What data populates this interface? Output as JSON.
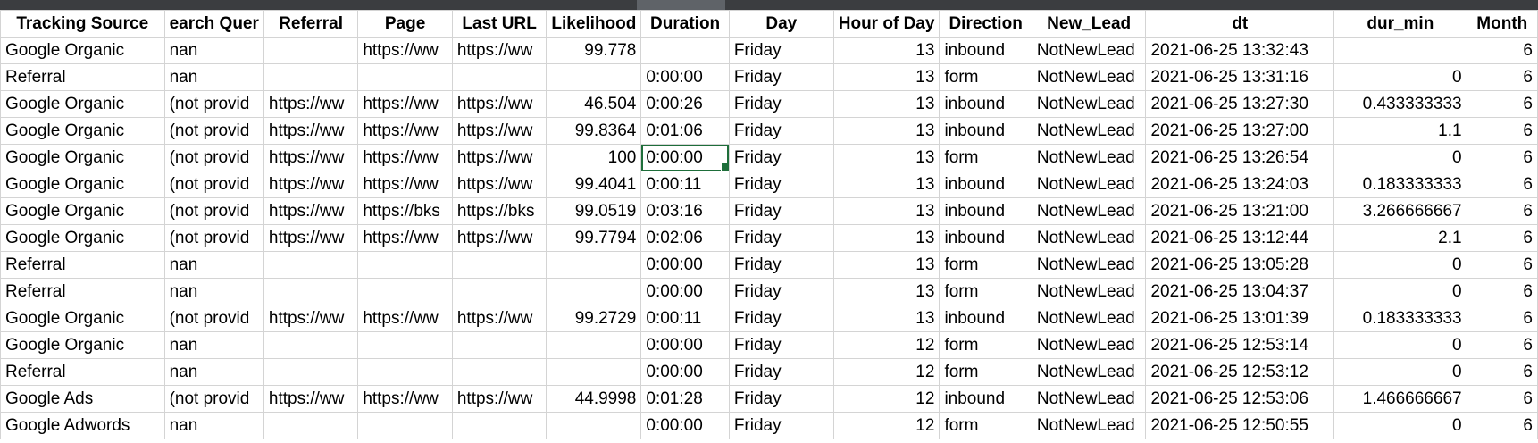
{
  "columns": [
    "Tracking Source",
    "Search Query",
    "Referral",
    "Page",
    "Last URL",
    "Likelihood",
    "Duration",
    "Day",
    "Hour of Day",
    "Direction",
    "New_Lead",
    "dt",
    "dur_min",
    "Month"
  ],
  "column_header_visible": [
    "Tracking Source",
    "earch Quer",
    "Referral",
    "Page",
    "Last URL",
    "Likelihood",
    "Duration",
    "Day",
    "Hour of Day",
    "Direction",
    "New_Lead",
    "dt",
    "dur_min",
    "Month"
  ],
  "active_cell": {
    "row": 5,
    "column": "Duration"
  },
  "rows": [
    [
      "Google Organic",
      "nan",
      "",
      "https://ww",
      "https://ww",
      "99.778",
      "",
      "Friday",
      "13",
      "inbound",
      "NotNewLead",
      "2021-06-25 13:32:43",
      "",
      "6"
    ],
    [
      "Referral",
      "nan",
      "",
      "",
      "",
      "",
      "0:00:00",
      "Friday",
      "13",
      "form",
      "NotNewLead",
      "2021-06-25 13:31:16",
      "0",
      "6"
    ],
    [
      "Google Organic",
      "(not provid",
      "https://ww",
      "https://ww",
      "https://ww",
      "46.504",
      "0:00:26",
      "Friday",
      "13",
      "inbound",
      "NotNewLead",
      "2021-06-25 13:27:30",
      "0.433333333",
      "6"
    ],
    [
      "Google Organic",
      "(not provid",
      "https://ww",
      "https://ww",
      "https://ww",
      "99.8364",
      "0:01:06",
      "Friday",
      "13",
      "inbound",
      "NotNewLead",
      "2021-06-25 13:27:00",
      "1.1",
      "6"
    ],
    [
      "Google Organic",
      "(not provid",
      "https://ww",
      "https://ww",
      "https://ww",
      "100",
      "0:00:00",
      "Friday",
      "13",
      "form",
      "NotNewLead",
      "2021-06-25 13:26:54",
      "0",
      "6"
    ],
    [
      "Google Organic",
      "(not provid",
      "https://ww",
      "https://ww",
      "https://ww",
      "99.4041",
      "0:00:11",
      "Friday",
      "13",
      "inbound",
      "NotNewLead",
      "2021-06-25 13:24:03",
      "0.183333333",
      "6"
    ],
    [
      "Google Organic",
      "(not provid",
      "https://ww",
      "https://bks",
      "https://bks",
      "99.0519",
      "0:03:16",
      "Friday",
      "13",
      "inbound",
      "NotNewLead",
      "2021-06-25 13:21:00",
      "3.266666667",
      "6"
    ],
    [
      "Google Organic",
      "(not provid",
      "https://ww",
      "https://ww",
      "https://ww",
      "99.7794",
      "0:02:06",
      "Friday",
      "13",
      "inbound",
      "NotNewLead",
      "2021-06-25 13:12:44",
      "2.1",
      "6"
    ],
    [
      "Referral",
      "nan",
      "",
      "",
      "",
      "",
      "0:00:00",
      "Friday",
      "13",
      "form",
      "NotNewLead",
      "2021-06-25 13:05:28",
      "0",
      "6"
    ],
    [
      "Referral",
      "nan",
      "",
      "",
      "",
      "",
      "0:00:00",
      "Friday",
      "13",
      "form",
      "NotNewLead",
      "2021-06-25 13:04:37",
      "0",
      "6"
    ],
    [
      "Google Organic",
      "(not provid",
      "https://ww",
      "https://ww",
      "https://ww",
      "99.2729",
      "0:00:11",
      "Friday",
      "13",
      "inbound",
      "NotNewLead",
      "2021-06-25 13:01:39",
      "0.183333333",
      "6"
    ],
    [
      "Google Organic",
      "nan",
      "",
      "",
      "",
      "",
      "0:00:00",
      "Friday",
      "12",
      "form",
      "NotNewLead",
      "2021-06-25 12:53:14",
      "0",
      "6"
    ],
    [
      "Referral",
      "nan",
      "",
      "",
      "",
      "",
      "0:00:00",
      "Friday",
      "12",
      "form",
      "NotNewLead",
      "2021-06-25 12:53:12",
      "0",
      "6"
    ],
    [
      "Google Ads",
      "(not provid",
      "https://ww",
      "https://ww",
      "https://ww",
      "44.9998",
      "0:01:28",
      "Friday",
      "12",
      "inbound",
      "NotNewLead",
      "2021-06-25 12:53:06",
      "1.466666667",
      "6"
    ],
    [
      "Google Adwords",
      "nan",
      "",
      "",
      "",
      "",
      "0:00:00",
      "Friday",
      "12",
      "form",
      "NotNewLead",
      "2021-06-25 12:50:55",
      "0",
      "6"
    ]
  ],
  "colors": {
    "grid_line": "#d4d4d4",
    "selection_border": "#1e6e3a",
    "top_bar": "#3b3d40"
  }
}
